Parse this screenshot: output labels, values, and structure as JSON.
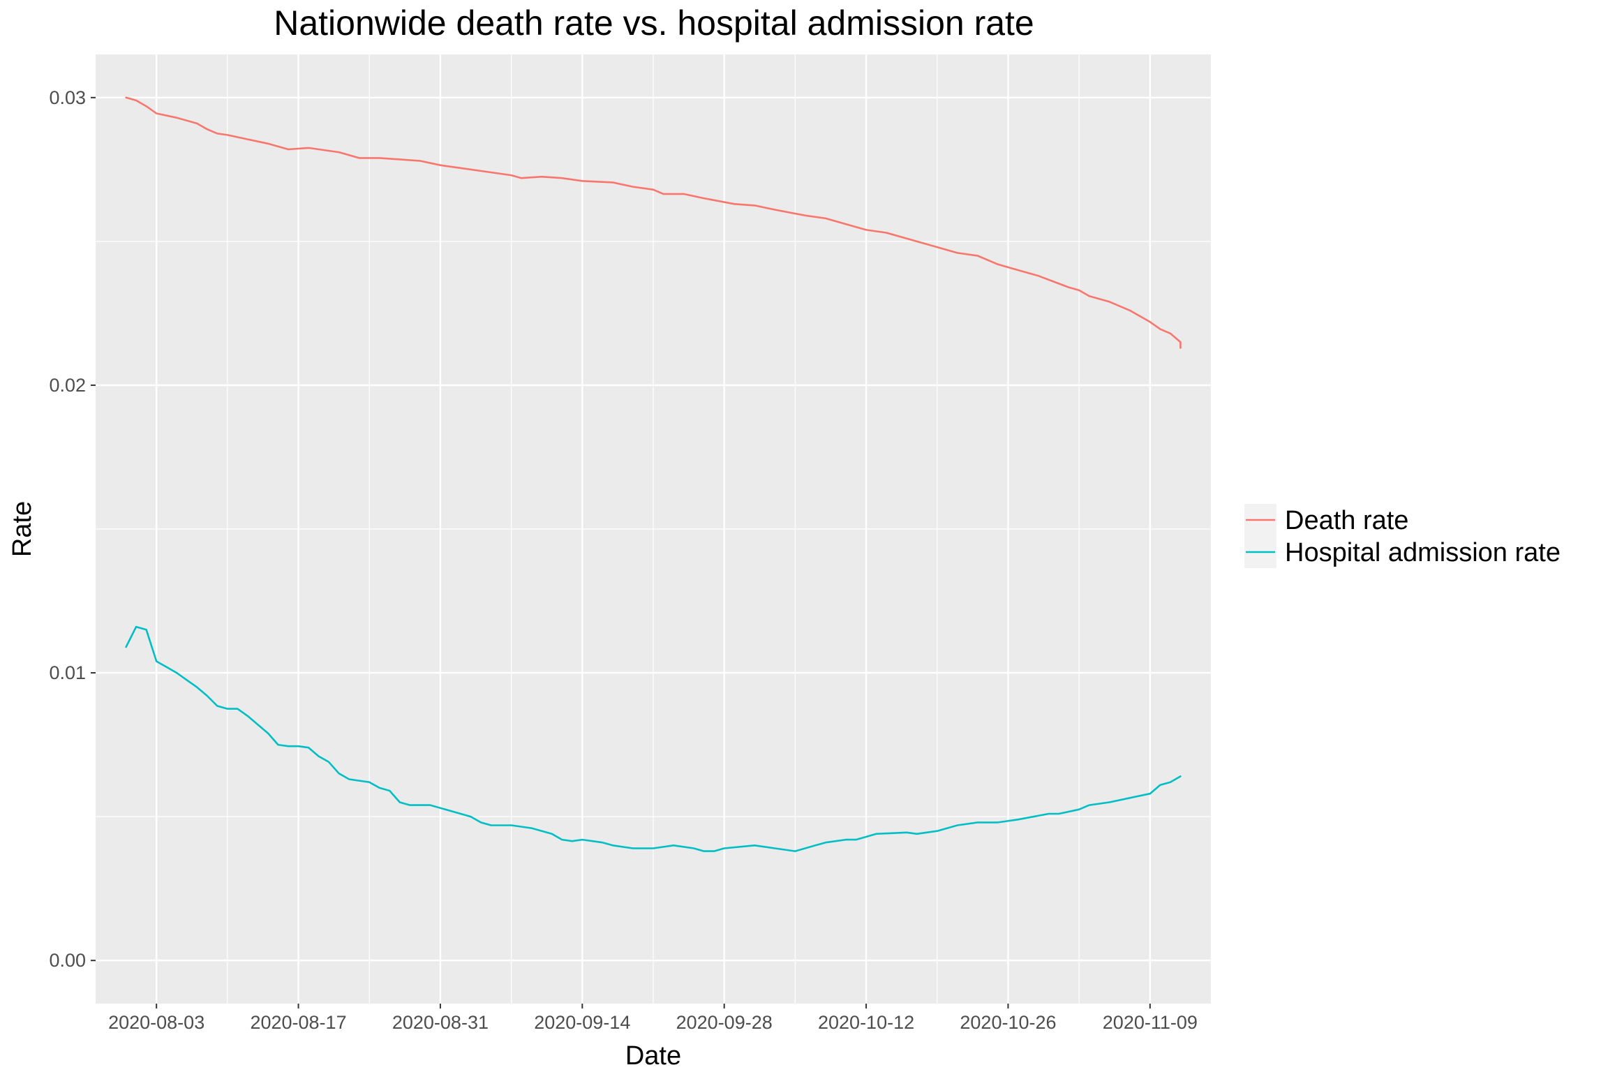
{
  "chart_data": {
    "type": "line",
    "title": "Nationwide death rate vs. hospital admission rate",
    "xlabel": "Date",
    "ylabel": "Rate",
    "x_type": "date",
    "xlim": [
      "2020-07-28",
      "2020-11-15"
    ],
    "ylim": [
      -0.0015,
      0.0315
    ],
    "y_ticks": [
      0.0,
      0.01,
      0.02,
      0.03
    ],
    "y_tick_labels": [
      "0.00",
      "0.01",
      "0.02",
      "0.03"
    ],
    "x_ticks": [
      "2020-08-03",
      "2020-08-17",
      "2020-08-31",
      "2020-09-14",
      "2020-09-28",
      "2020-10-12",
      "2020-10-26",
      "2020-11-09"
    ],
    "x_tick_labels": [
      "2020-08-03",
      "2020-08-17",
      "2020-08-31",
      "2020-09-14",
      "2020-09-28",
      "2020-10-12",
      "2020-10-26",
      "2020-11-09"
    ],
    "grid": true,
    "legend_position": "right",
    "series": [
      {
        "name": "Death rate",
        "color": "#F8766D",
        "points": [
          [
            "2020-07-31",
            0.03
          ],
          [
            "2020-08-01",
            0.0299
          ],
          [
            "2020-08-02",
            0.0297
          ],
          [
            "2020-08-03",
            0.02945
          ],
          [
            "2020-08-05",
            0.0293
          ],
          [
            "2020-08-07",
            0.0291
          ],
          [
            "2020-08-08",
            0.0289
          ],
          [
            "2020-08-09",
            0.02875
          ],
          [
            "2020-08-10",
            0.0287
          ],
          [
            "2020-08-12",
            0.02855
          ],
          [
            "2020-08-14",
            0.0284
          ],
          [
            "2020-08-16",
            0.0282
          ],
          [
            "2020-08-18",
            0.02825
          ],
          [
            "2020-08-21",
            0.0281
          ],
          [
            "2020-08-22",
            0.028
          ],
          [
            "2020-08-23",
            0.0279
          ],
          [
            "2020-08-25",
            0.0279
          ],
          [
            "2020-08-27",
            0.02785
          ],
          [
            "2020-08-29",
            0.0278
          ],
          [
            "2020-08-31",
            0.02765
          ],
          [
            "2020-09-02",
            0.02755
          ],
          [
            "2020-09-05",
            0.0274
          ],
          [
            "2020-09-07",
            0.0273
          ],
          [
            "2020-09-08",
            0.0272
          ],
          [
            "2020-09-10",
            0.02725
          ],
          [
            "2020-09-12",
            0.0272
          ],
          [
            "2020-09-14",
            0.0271
          ],
          [
            "2020-09-17",
            0.02705
          ],
          [
            "2020-09-19",
            0.0269
          ],
          [
            "2020-09-21",
            0.0268
          ],
          [
            "2020-09-22",
            0.02665
          ],
          [
            "2020-09-24",
            0.02665
          ],
          [
            "2020-09-26",
            0.0265
          ],
          [
            "2020-09-29",
            0.0263
          ],
          [
            "2020-10-01",
            0.02625
          ],
          [
            "2020-10-03",
            0.0261
          ],
          [
            "2020-10-06",
            0.0259
          ],
          [
            "2020-10-08",
            0.0258
          ],
          [
            "2020-10-09",
            0.0257
          ],
          [
            "2020-10-11",
            0.0255
          ],
          [
            "2020-10-12",
            0.0254
          ],
          [
            "2020-10-14",
            0.0253
          ],
          [
            "2020-10-17",
            0.025
          ],
          [
            "2020-10-19",
            0.0248
          ],
          [
            "2020-10-21",
            0.0246
          ],
          [
            "2020-10-23",
            0.0245
          ],
          [
            "2020-10-25",
            0.0242
          ],
          [
            "2020-10-27",
            0.024
          ],
          [
            "2020-10-29",
            0.0238
          ],
          [
            "2020-11-01",
            0.0234
          ],
          [
            "2020-11-02",
            0.0233
          ],
          [
            "2020-11-03",
            0.0231
          ],
          [
            "2020-11-05",
            0.0229
          ],
          [
            "2020-11-07",
            0.0226
          ],
          [
            "2020-11-09",
            0.0222
          ],
          [
            "2020-11-10",
            0.02195
          ],
          [
            "2020-11-11",
            0.0218
          ],
          [
            "2020-11-12",
            0.0215
          ],
          [
            "2020-11-12",
            0.0213
          ]
        ]
      },
      {
        "name": "Hospital admission rate",
        "color": "#00BFC4",
        "points": [
          [
            "2020-07-31",
            0.0109
          ],
          [
            "2020-08-01",
            0.0116
          ],
          [
            "2020-08-02",
            0.0115
          ],
          [
            "2020-08-03",
            0.0104
          ],
          [
            "2020-08-04",
            0.0102
          ],
          [
            "2020-08-05",
            0.01
          ],
          [
            "2020-08-06",
            0.00975
          ],
          [
            "2020-08-07",
            0.0095
          ],
          [
            "2020-08-08",
            0.0092
          ],
          [
            "2020-08-09",
            0.00885
          ],
          [
            "2020-08-10",
            0.00875
          ],
          [
            "2020-08-11",
            0.00875
          ],
          [
            "2020-08-12",
            0.0085
          ],
          [
            "2020-08-13",
            0.0082
          ],
          [
            "2020-08-14",
            0.0079
          ],
          [
            "2020-08-15",
            0.0075
          ],
          [
            "2020-08-16",
            0.00745
          ],
          [
            "2020-08-17",
            0.00745
          ],
          [
            "2020-08-18",
            0.0074
          ],
          [
            "2020-08-19",
            0.0071
          ],
          [
            "2020-08-20",
            0.0069
          ],
          [
            "2020-08-21",
            0.0065
          ],
          [
            "2020-08-22",
            0.0063
          ],
          [
            "2020-08-23",
            0.00625
          ],
          [
            "2020-08-24",
            0.0062
          ],
          [
            "2020-08-25",
            0.006
          ],
          [
            "2020-08-26",
            0.0059
          ],
          [
            "2020-08-27",
            0.0055
          ],
          [
            "2020-08-28",
            0.0054
          ],
          [
            "2020-08-30",
            0.0054
          ],
          [
            "2020-09-01",
            0.0052
          ],
          [
            "2020-09-03",
            0.005
          ],
          [
            "2020-09-04",
            0.0048
          ],
          [
            "2020-09-05",
            0.0047
          ],
          [
            "2020-09-07",
            0.0047
          ],
          [
            "2020-09-09",
            0.0046
          ],
          [
            "2020-09-11",
            0.0044
          ],
          [
            "2020-09-12",
            0.0042
          ],
          [
            "2020-09-13",
            0.00415
          ],
          [
            "2020-09-14",
            0.0042
          ],
          [
            "2020-09-16",
            0.0041
          ],
          [
            "2020-09-17",
            0.004
          ],
          [
            "2020-09-19",
            0.0039
          ],
          [
            "2020-09-21",
            0.0039
          ],
          [
            "2020-09-23",
            0.004
          ],
          [
            "2020-09-25",
            0.0039
          ],
          [
            "2020-09-26",
            0.0038
          ],
          [
            "2020-09-27",
            0.0038
          ],
          [
            "2020-09-28",
            0.0039
          ],
          [
            "2020-10-01",
            0.004
          ],
          [
            "2020-10-03",
            0.0039
          ],
          [
            "2020-10-05",
            0.0038
          ],
          [
            "2020-10-07",
            0.004
          ],
          [
            "2020-10-08",
            0.0041
          ],
          [
            "2020-10-10",
            0.0042
          ],
          [
            "2020-10-11",
            0.0042
          ],
          [
            "2020-10-12",
            0.0043
          ],
          [
            "2020-10-13",
            0.0044
          ],
          [
            "2020-10-16",
            0.00445
          ],
          [
            "2020-10-17",
            0.0044
          ],
          [
            "2020-10-19",
            0.0045
          ],
          [
            "2020-10-21",
            0.0047
          ],
          [
            "2020-10-23",
            0.0048
          ],
          [
            "2020-10-25",
            0.0048
          ],
          [
            "2020-10-27",
            0.0049
          ],
          [
            "2020-10-30",
            0.0051
          ],
          [
            "2020-10-31",
            0.0051
          ],
          [
            "2020-11-02",
            0.00525
          ],
          [
            "2020-11-03",
            0.0054
          ],
          [
            "2020-11-05",
            0.0055
          ],
          [
            "2020-11-07",
            0.00565
          ],
          [
            "2020-11-09",
            0.0058
          ],
          [
            "2020-11-10",
            0.0061
          ],
          [
            "2020-11-11",
            0.0062
          ],
          [
            "2020-11-12",
            0.0064
          ]
        ]
      }
    ]
  }
}
